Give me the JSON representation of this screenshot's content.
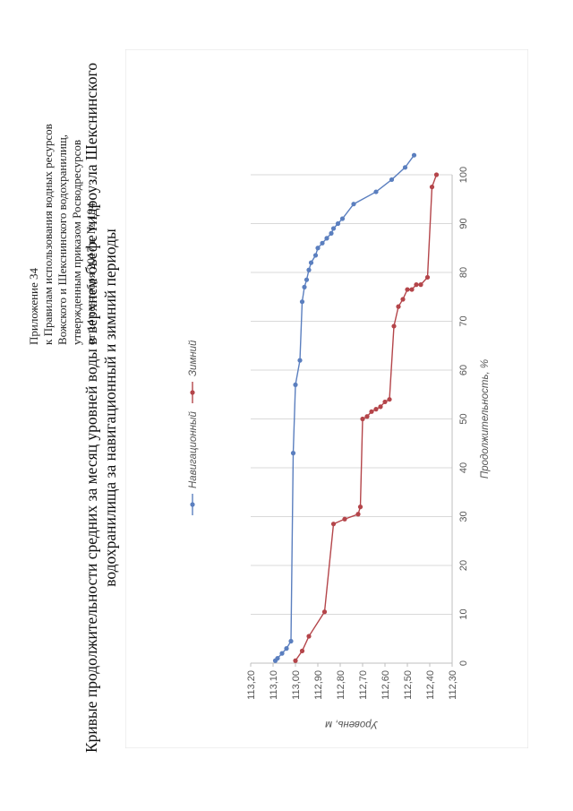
{
  "header": {
    "lines": [
      "Приложение 34",
      "к Правилам использования водных ресурсов",
      "Вожского и Шекснинского водохранилищ,",
      "утвержденным приказом Росводресурсов",
      "от 14 сентября 2017 г. № 194"
    ]
  },
  "chart_title": {
    "line1": "Кривые продолжительности средних за месяц уровней воды в верхнем бьефе гидроузла Шекснинского",
    "line2": "водохранилища за навигационный и зимний периоды"
  },
  "colors": {
    "nav": "#5b7fbf",
    "winter": "#b4454a",
    "grid": "#d9d9d9",
    "axis": "#bfbfbf"
  },
  "chart_data": {
    "type": "line",
    "title": "Кривые продолжительности средних за месяц уровней воды в верхнем бьефе гидроузла Шекснинского водохранилища за навигационный и зимний периоды",
    "xlabel": "Продолжительность, %",
    "ylabel": "Уровень, м",
    "xlim": [
      0,
      100
    ],
    "ylim": [
      112.3,
      113.2
    ],
    "x_ticks": [
      "0",
      "10",
      "20",
      "30",
      "40",
      "50",
      "60",
      "70",
      "80",
      "90",
      "100"
    ],
    "y_ticks": [
      "112,30",
      "112,40",
      "112,50",
      "112,60",
      "112,70",
      "112,80",
      "112,90",
      "113,00",
      "113,10",
      "113,20"
    ],
    "grid": true,
    "legend_position": "top",
    "series": [
      {
        "name": "Навигационный",
        "x": [
          0.5,
          1,
          2,
          3,
          4.5,
          43,
          57,
          62,
          74,
          77,
          78.5,
          80.5,
          82,
          83.5,
          85,
          86,
          87,
          88,
          89,
          90,
          91,
          94,
          96.5,
          99,
          101.5,
          104
        ],
        "y": [
          113.09,
          113.08,
          113.06,
          113.04,
          113.02,
          113.01,
          113.0,
          112.98,
          112.97,
          112.96,
          112.95,
          112.94,
          112.93,
          112.91,
          112.9,
          112.88,
          112.86,
          112.84,
          112.83,
          112.81,
          112.79,
          112.74,
          112.64,
          112.57,
          112.51,
          112.47
        ]
      },
      {
        "name": "Зимний",
        "x": [
          0.5,
          2.5,
          5.5,
          10.5,
          28.5,
          29.5,
          30.5,
          32,
          50,
          50.5,
          51.5,
          52,
          52.5,
          53.5,
          54,
          69,
          73,
          74.5,
          76.5,
          76.5,
          77.5,
          77.5,
          79,
          97.5,
          100
        ],
        "y": [
          113.0,
          112.97,
          112.94,
          112.87,
          112.83,
          112.78,
          112.72,
          112.71,
          112.7,
          112.68,
          112.66,
          112.64,
          112.62,
          112.6,
          112.58,
          112.56,
          112.54,
          112.52,
          112.5,
          112.48,
          112.46,
          112.44,
          112.41,
          112.39,
          112.37
        ]
      }
    ]
  }
}
